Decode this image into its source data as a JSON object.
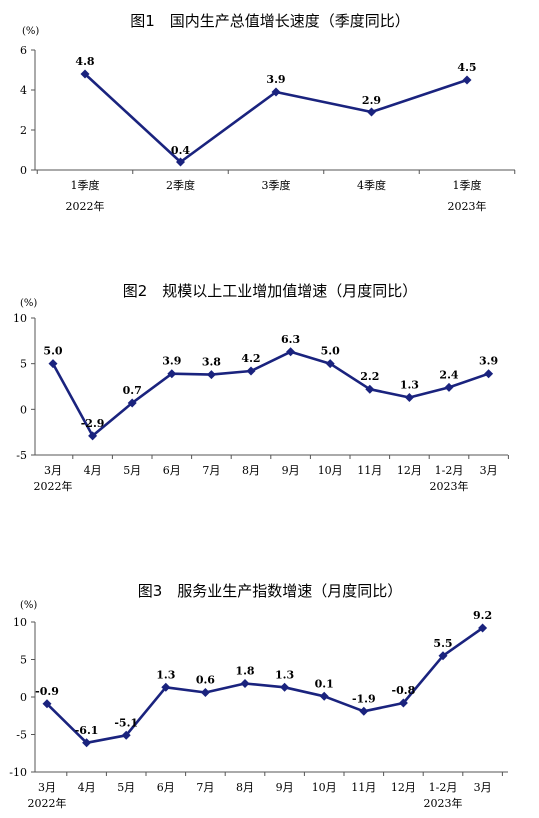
{
  "chart_data": [
    {
      "type": "line",
      "title": "图1　国内生产总值增长速度（季度同比）",
      "unit": "(%)",
      "categories": [
        "1季度",
        "2季度",
        "3季度",
        "4季度",
        "1季度"
      ],
      "years": [
        "2022年",
        "",
        "",
        "",
        "2023年"
      ],
      "values": [
        4.8,
        0.4,
        3.9,
        2.9,
        4.5
      ],
      "value_labels": [
        "4.8",
        "0.4",
        "3.9",
        "2.9",
        "4.5"
      ],
      "ylim": [
        0,
        6
      ],
      "yticks": [
        0,
        2,
        4,
        6
      ],
      "ytick_labels": [
        "0",
        "2",
        "4",
        "6"
      ],
      "grid": false,
      "series_color": "#1a237e"
    },
    {
      "type": "line",
      "title": "图2　规模以上工业增加值增速（月度同比）",
      "unit": "(%)",
      "categories": [
        "3月",
        "4月",
        "5月",
        "6月",
        "7月",
        "8月",
        "9月",
        "10月",
        "11月",
        "12月",
        "1-2月",
        "3月"
      ],
      "years": [
        "2022年",
        "",
        "",
        "",
        "",
        "",
        "",
        "",
        "",
        "",
        "2023年",
        ""
      ],
      "values": [
        5.0,
        -2.9,
        0.7,
        3.9,
        3.8,
        4.2,
        6.3,
        5.0,
        2.2,
        1.3,
        2.4,
        3.9
      ],
      "value_labels": [
        "5.0",
        "-2.9",
        "0.7",
        "3.9",
        "3.8",
        "4.2",
        "6.3",
        "5.0",
        "2.2",
        "1.3",
        "2.4",
        "3.9"
      ],
      "ylim": [
        -5,
        10
      ],
      "yticks": [
        -5,
        0,
        5,
        10
      ],
      "ytick_labels": [
        "-5",
        "0",
        "5",
        "10"
      ],
      "grid": false,
      "series_color": "#1a237e"
    },
    {
      "type": "line",
      "title": "图3　服务业生产指数增速（月度同比）",
      "unit": "(%)",
      "categories": [
        "3月",
        "4月",
        "5月",
        "6月",
        "7月",
        "8月",
        "9月",
        "10月",
        "11月",
        "12月",
        "1-2月",
        "3月"
      ],
      "years": [
        "2022年",
        "",
        "",
        "",
        "",
        "",
        "",
        "",
        "",
        "",
        "2023年",
        ""
      ],
      "values": [
        -0.9,
        -6.1,
        -5.1,
        1.3,
        0.6,
        1.8,
        1.3,
        0.1,
        -1.9,
        -0.8,
        5.5,
        9.2
      ],
      "value_labels": [
        "-0.9",
        "-6.1",
        "-5.1",
        "1.3",
        "0.6",
        "1.8",
        "1.3",
        "0.1",
        "-1.9",
        "-0.8",
        "5.5",
        "9.2"
      ],
      "ylim": [
        -10,
        10
      ],
      "yticks": [
        -10,
        -5,
        0,
        5,
        10
      ],
      "ytick_labels": [
        "-10",
        "-5",
        "0",
        "5",
        "10"
      ],
      "grid": false,
      "series_color": "#1a237e"
    }
  ]
}
